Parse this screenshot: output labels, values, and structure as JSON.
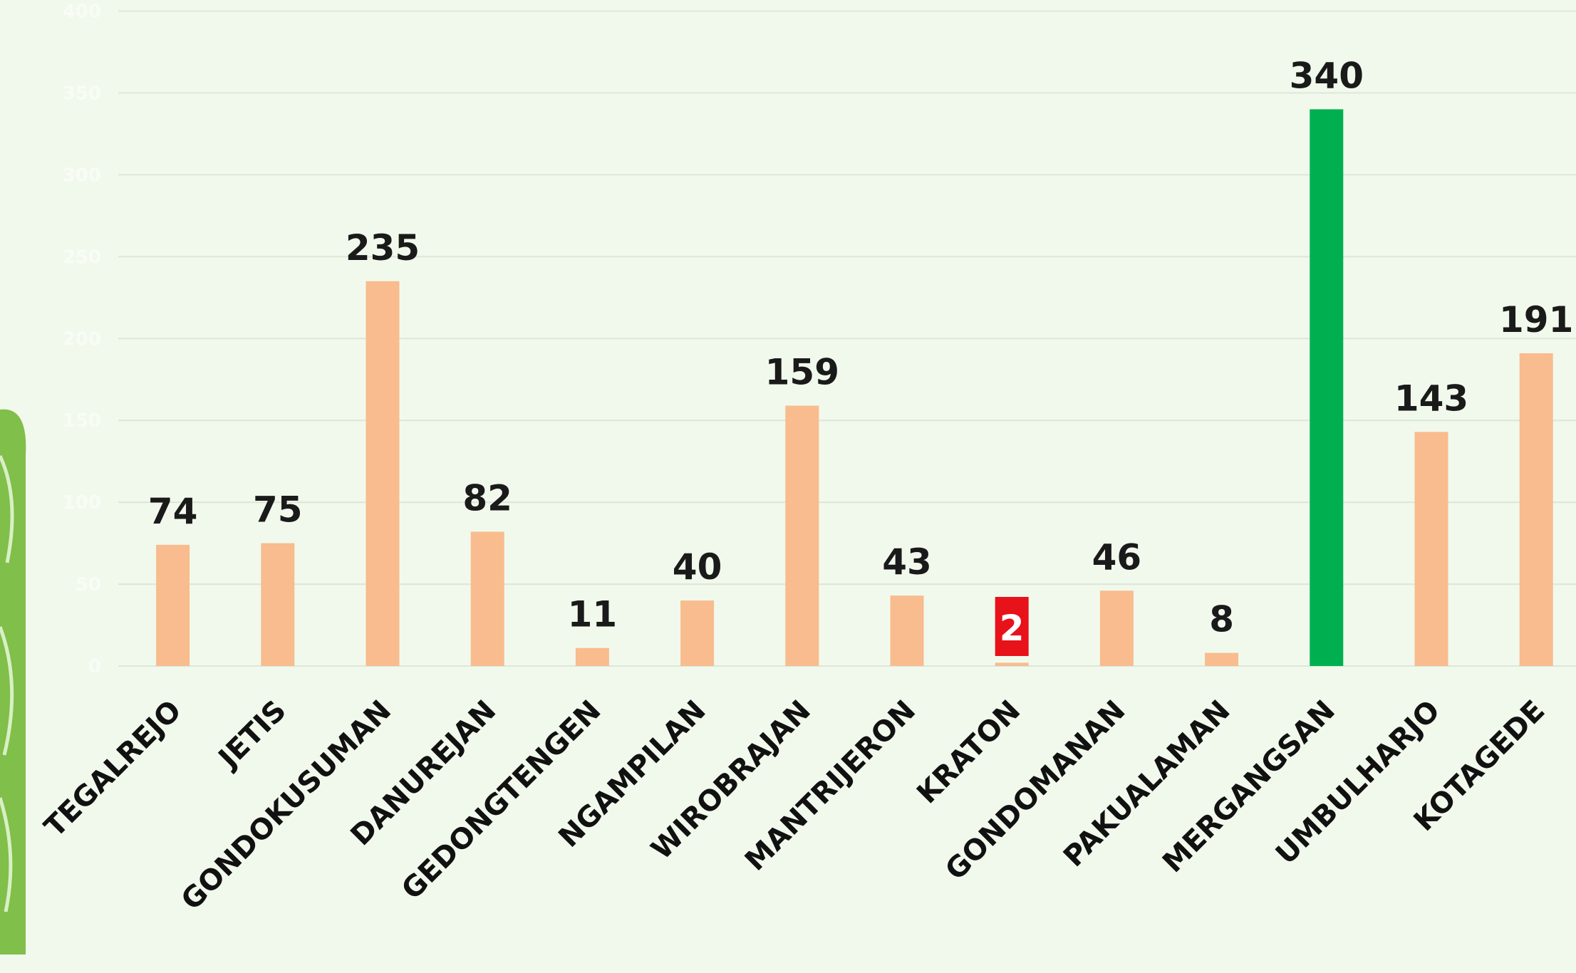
{
  "chart_data": {
    "type": "bar",
    "categories": [
      "TEGALREJO",
      "JETIS",
      "GONDOKUSUMAN",
      "DANUREJAN",
      "GEDONGTENGEN",
      "NGAMPILAN",
      "WIROBRAJAN",
      "MANTRIJERON",
      "KRATON",
      "GONDOMANAN",
      "PAKUALAMAN",
      "MERGANGSAN",
      "UMBULHARJO",
      "KOTAGEDE"
    ],
    "values": [
      74,
      75,
      235,
      82,
      11,
      40,
      159,
      43,
      2,
      46,
      8,
      340,
      143,
      191
    ],
    "colors": [
      "#f8bc8e",
      "#f8bc8e",
      "#f8bc8e",
      "#f8bc8e",
      "#f8bc8e",
      "#f8bc8e",
      "#f8bc8e",
      "#f8bc8e",
      "#f8bc8e",
      "#f8bc8e",
      "#f8bc8e",
      "#00b050",
      "#f8bc8e",
      "#f8bc8e"
    ],
    "label_backgrounds": [
      null,
      null,
      null,
      null,
      null,
      null,
      null,
      null,
      "#e8121a",
      null,
      null,
      null,
      null,
      null
    ],
    "ylim": [
      0,
      400
    ],
    "yticks": [
      0,
      50,
      100,
      150,
      200,
      250,
      300,
      350,
      400
    ],
    "grid": true
  }
}
